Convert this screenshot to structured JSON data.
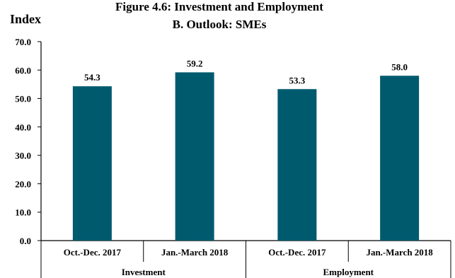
{
  "chart_data": {
    "type": "bar",
    "title_line1": "Figure 4.6: Investment and Employment",
    "title_line2": "B. Outlook: SMEs",
    "ylabel": "Index",
    "xlabel": "",
    "ylim": [
      0,
      70
    ],
    "y_ticks": [
      "0.0",
      "10.0",
      "20.0",
      "30.0",
      "40.0",
      "50.0",
      "60.0",
      "70.0"
    ],
    "y_tick_values": [
      0,
      10,
      20,
      30,
      40,
      50,
      60,
      70
    ],
    "categories": [
      "Oct.-Dec. 2017",
      "Jan.-March 2018",
      "Oct.-Dec. 2017",
      "Jan.-March 2018"
    ],
    "groups": [
      {
        "label": "Investment",
        "categories": [
          "Oct.-Dec. 2017",
          "Jan.-March 2018"
        ]
      },
      {
        "label": "Employment",
        "categories": [
          "Oct.-Dec. 2017",
          "Jan.-March 2018"
        ]
      }
    ],
    "values": [
      54.3,
      59.2,
      53.3,
      58.0
    ],
    "value_labels": [
      "54.3",
      "59.2",
      "53.3",
      "58.0"
    ],
    "bar_color": "#005A6E",
    "grid": false,
    "legend": "none"
  }
}
